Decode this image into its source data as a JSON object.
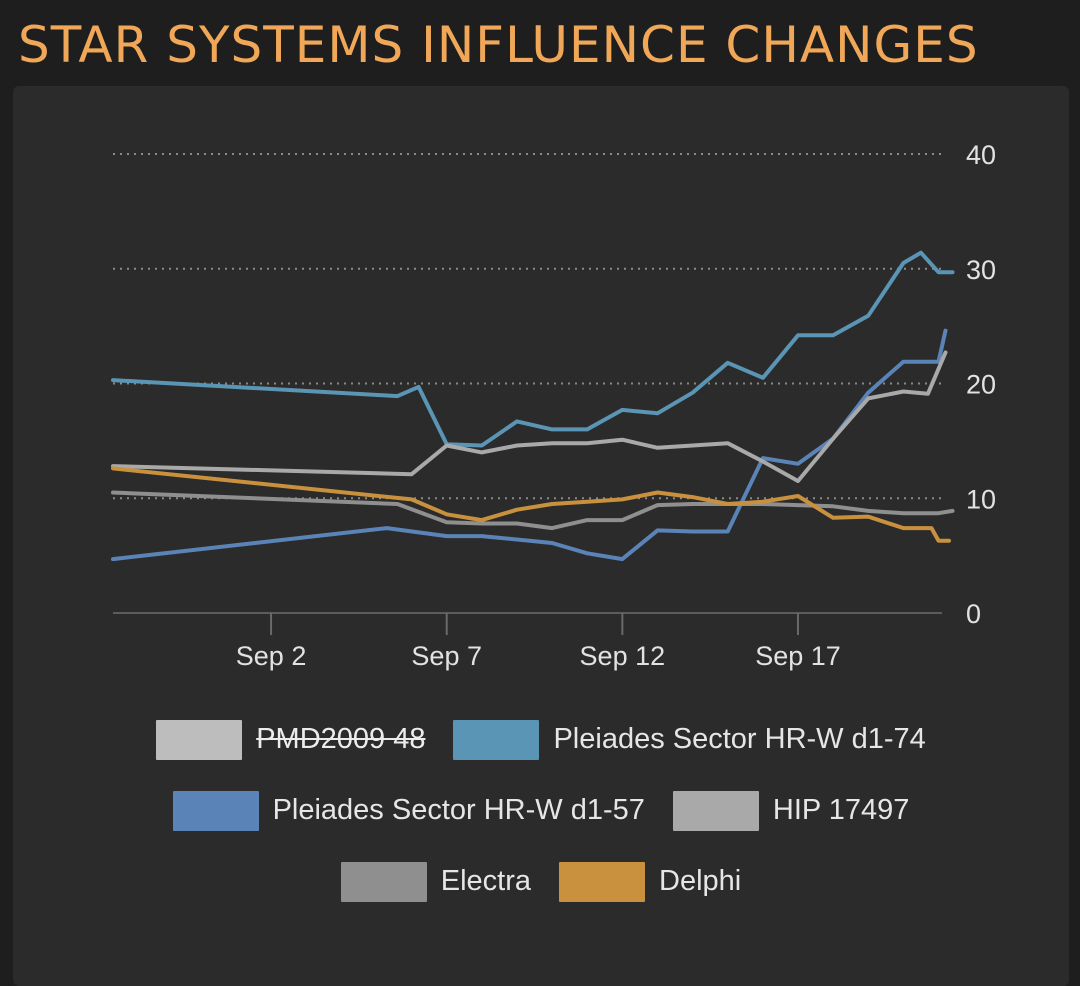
{
  "title": "STAR SYSTEMS INFLUENCE CHANGES",
  "chart_data": {
    "type": "line",
    "title": "STAR SYSTEMS INFLUENCE CHANGES",
    "xlabel": "",
    "ylabel": "",
    "ylim": [
      0,
      40
    ],
    "yticks": [
      "0",
      "10",
      "20",
      "30",
      "40"
    ],
    "xtick_labels": [
      "Sep 2",
      "Sep 7",
      "Sep 12",
      "Sep 17"
    ],
    "xticks_day": [
      2,
      7,
      12,
      17
    ],
    "xlim_day": [
      -2.5,
      21.1
    ],
    "y_axis_position": "right",
    "grid": "horizontal dotted",
    "legend_position": "bottom",
    "series": [
      {
        "name": "PMD2009 48",
        "color": "#bdbdbd",
        "hidden": true,
        "points": []
      },
      {
        "name": "Pleiades Sector HR-W d1-74",
        "color": "#5b95b5",
        "hidden": false,
        "points": [
          [
            -2.5,
            20.3
          ],
          [
            5.6,
            18.9
          ],
          [
            6.2,
            19.7
          ],
          [
            7.0,
            14.7
          ],
          [
            8.0,
            14.6
          ],
          [
            9.0,
            16.7
          ],
          [
            10.0,
            16.0
          ],
          [
            11.0,
            16.0
          ],
          [
            12.0,
            17.7
          ],
          [
            13.0,
            17.4
          ],
          [
            14.0,
            19.2
          ],
          [
            15.0,
            21.8
          ],
          [
            16.0,
            20.5
          ],
          [
            17.0,
            24.2
          ],
          [
            18.0,
            24.2
          ],
          [
            19.0,
            25.9
          ],
          [
            20.0,
            30.5
          ],
          [
            20.5,
            31.4
          ],
          [
            21.0,
            29.7
          ],
          [
            21.4,
            29.7
          ]
        ]
      },
      {
        "name": "Pleiades Sector HR-W d1-57",
        "color": "#5a84b8",
        "hidden": false,
        "points": [
          [
            -2.5,
            4.7
          ],
          [
            5.3,
            7.4
          ],
          [
            7.0,
            6.7
          ],
          [
            8.0,
            6.7
          ],
          [
            10.0,
            6.1
          ],
          [
            11.0,
            5.2
          ],
          [
            12.0,
            4.7
          ],
          [
            13.0,
            7.2
          ],
          [
            14.0,
            7.1
          ],
          [
            15.0,
            7.1
          ],
          [
            16.0,
            13.5
          ],
          [
            17.0,
            13.0
          ],
          [
            18.0,
            15.2
          ],
          [
            19.0,
            19.2
          ],
          [
            20.0,
            21.9
          ],
          [
            20.7,
            21.9
          ],
          [
            21.0,
            21.9
          ],
          [
            21.2,
            24.6
          ]
        ]
      },
      {
        "name": "HIP 17497",
        "color": "#a9a9a9",
        "hidden": false,
        "points": [
          [
            -2.5,
            12.8
          ],
          [
            6.0,
            12.1
          ],
          [
            7.0,
            14.6
          ],
          [
            8.0,
            14.0
          ],
          [
            9.0,
            14.6
          ],
          [
            10.0,
            14.8
          ],
          [
            11.0,
            14.8
          ],
          [
            12.0,
            15.1
          ],
          [
            13.0,
            14.4
          ],
          [
            14.0,
            14.6
          ],
          [
            15.0,
            14.8
          ],
          [
            16.0,
            13.2
          ],
          [
            17.0,
            11.5
          ],
          [
            18.0,
            15.2
          ],
          [
            19.0,
            18.7
          ],
          [
            20.0,
            19.3
          ],
          [
            20.7,
            19.1
          ],
          [
            21.2,
            22.7
          ]
        ]
      },
      {
        "name": "Electra",
        "color": "#8f8f8f",
        "hidden": false,
        "points": [
          [
            -2.5,
            10.5
          ],
          [
            5.6,
            9.5
          ],
          [
            7.0,
            7.9
          ],
          [
            8.0,
            7.8
          ],
          [
            9.0,
            7.8
          ],
          [
            10.0,
            7.4
          ],
          [
            11.0,
            8.1
          ],
          [
            12.0,
            8.1
          ],
          [
            13.0,
            9.4
          ],
          [
            14.0,
            9.5
          ],
          [
            15.0,
            9.5
          ],
          [
            16.0,
            9.5
          ],
          [
            17.0,
            9.4
          ],
          [
            18.0,
            9.3
          ],
          [
            19.0,
            8.9
          ],
          [
            20.0,
            8.7
          ],
          [
            21.0,
            8.7
          ],
          [
            21.4,
            8.9
          ]
        ]
      },
      {
        "name": "Delphi",
        "color": "#c9913d",
        "hidden": false,
        "points": [
          [
            -2.5,
            12.6
          ],
          [
            6.0,
            9.9
          ],
          [
            7.0,
            8.6
          ],
          [
            8.0,
            8.1
          ],
          [
            9.0,
            9.0
          ],
          [
            10.0,
            9.5
          ],
          [
            11.0,
            9.7
          ],
          [
            12.0,
            9.9
          ],
          [
            13.0,
            10.5
          ],
          [
            14.0,
            10.1
          ],
          [
            15.0,
            9.5
          ],
          [
            16.0,
            9.7
          ],
          [
            17.0,
            10.2
          ],
          [
            18.0,
            8.3
          ],
          [
            19.0,
            8.4
          ],
          [
            20.0,
            7.4
          ],
          [
            20.8,
            7.4
          ],
          [
            21.0,
            6.3
          ],
          [
            21.3,
            6.3
          ]
        ]
      }
    ]
  }
}
